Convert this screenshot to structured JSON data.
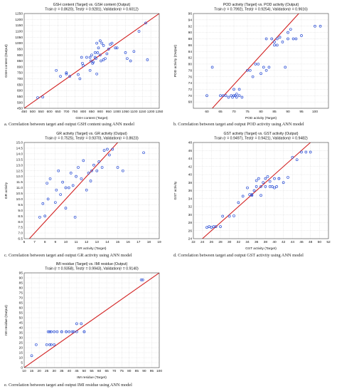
{
  "colors": {
    "line": "#d22020",
    "marker": "#2b4fd6",
    "grid": "#cfcfcf",
    "frame": "#444444"
  },
  "chart_data": [
    {
      "id": "a",
      "type": "scatter",
      "title": "GSH content (Target) vs. GSH content (Output)",
      "subtitle": "Train (r = 0.8620), Test(r = 0.9281), Validation(r = 0.6012)",
      "xlabel": "GSH content (Target)",
      "ylabel": "GSH content (Output)",
      "caption": "a. Correlation between target and output GSH content using ANN model",
      "xlim": [
        450,
        1250
      ],
      "ylim": [
        450,
        1250
      ],
      "xticks": [
        450,
        500,
        550,
        600,
        650,
        700,
        750,
        800,
        850,
        900,
        950,
        1000,
        1050,
        1100,
        1150,
        1200,
        1250
      ],
      "yticks": [
        450,
        500,
        550,
        600,
        650,
        700,
        750,
        800,
        850,
        900,
        950,
        1000,
        1050,
        1100,
        1150,
        1200,
        1250
      ],
      "xtick_labels": [
        "450",
        "500",
        "550",
        "600",
        "650",
        "700",
        "750",
        "800",
        "850",
        "900",
        "950",
        "1000",
        "1050",
        "1100",
        "1150",
        "1200",
        "1250"
      ],
      "ytick_labels": [
        "450",
        "500",
        "550",
        "600",
        "650",
        "700",
        "750",
        "800",
        "850",
        "900",
        "950",
        "1000",
        "1050",
        "1100",
        "1150",
        "1200",
        "1250"
      ],
      "grid": true,
      "fit_line": [
        [
          450,
          450
        ],
        [
          1250,
          1250
        ]
      ],
      "x": [
        530,
        560,
        640,
        665,
        700,
        700,
        720,
        770,
        780,
        790,
        795,
        800,
        820,
        840,
        840,
        845,
        850,
        855,
        860,
        870,
        870,
        875,
        880,
        880,
        885,
        890,
        900,
        900,
        905,
        910,
        920,
        920,
        930,
        940,
        950,
        960,
        970,
        990,
        1000,
        1050,
        1060,
        1080,
        1100,
        1130,
        1170,
        1180
      ],
      "y": [
        540,
        545,
        770,
        720,
        750,
        740,
        720,
        735,
        700,
        880,
        830,
        810,
        880,
        880,
        770,
        850,
        900,
        830,
        840,
        880,
        920,
        870,
        740,
        1000,
        920,
        960,
        900,
        1020,
        850,
        1000,
        860,
        980,
        870,
        910,
        950,
        990,
        1000,
        960,
        960,
        920,
        870,
        850,
        930,
        1100,
        1170,
        860
      ]
    },
    {
      "id": "b",
      "type": "scatter",
      "title": "POD activity (Target) vs. POD activity (Output)",
      "subtitle": "Train (r = 0.7992), Test(r = 0.9254), Validation(r = 0.9616)",
      "xlabel": "POD activity (Target)",
      "ylabel": "POD activity (Output)",
      "caption": "b. Correlation between target and output POD activity using ANN model",
      "xlim": [
        55,
        105
      ],
      "ylim": [
        66,
        96
      ],
      "xticks": [
        60,
        65,
        70,
        75,
        80,
        85,
        90,
        95,
        100
      ],
      "yticks": [
        66,
        68,
        70,
        72,
        74,
        76,
        78,
        80,
        82,
        84,
        86,
        88,
        90,
        92,
        94,
        96
      ],
      "xtick_labels": [
        "60",
        "65",
        "70",
        "75",
        "80",
        "85",
        "90",
        "95",
        "100"
      ],
      "ytick_labels": [
        "",
        "68",
        "70",
        "72",
        "74",
        "76",
        "78",
        "80",
        "82",
        "84",
        "86",
        "88",
        "90",
        "92",
        "94",
        "96"
      ],
      "grid": true,
      "fit_line": [
        [
          62,
          66
        ],
        [
          94,
          96
        ]
      ],
      "x": [
        60,
        62,
        65,
        66,
        67,
        68,
        69,
        69.5,
        70,
        70,
        70.5,
        71,
        71,
        72,
        72,
        73,
        75,
        76,
        77,
        78,
        79,
        80,
        81,
        82,
        82,
        83,
        84,
        85,
        85,
        86,
        86,
        87,
        88,
        89,
        90,
        90,
        91,
        92,
        93,
        95,
        100,
        102
      ],
      "y": [
        70,
        79,
        70,
        70,
        70,
        69.5,
        70,
        69.5,
        70,
        72,
        70,
        69.5,
        70.5,
        70,
        72,
        69.5,
        78,
        78,
        76,
        80,
        80,
        77,
        79,
        78,
        88,
        79,
        88,
        86,
        87,
        86,
        88,
        88.5,
        87,
        79,
        88,
        90,
        91,
        88,
        88,
        89,
        92,
        92
      ]
    },
    {
      "id": "c",
      "type": "scatter",
      "title": "GR activity (Target) vs. GR activity (Output)",
      "subtitle": "Train (r = 0.7525), Test(r = 0.9370), Validation(r = 0.8623)",
      "xlabel": "GR activity (Target)",
      "ylabel": "GR activity",
      "caption": "c. Correlation between target and output GR activity using ANN model",
      "xlim": [
        6,
        19
      ],
      "ylim": [
        6.5,
        15
      ],
      "xticks": [
        6,
        7,
        8,
        9,
        10,
        11,
        12,
        13,
        14,
        15,
        16,
        17,
        18,
        19
      ],
      "yticks": [
        6.5,
        7.0,
        7.5,
        8.0,
        8.5,
        9.0,
        9.5,
        10.0,
        10.5,
        11.0,
        11.5,
        12.0,
        12.5,
        13.0,
        13.5,
        14.0,
        14.5,
        15.0
      ],
      "xtick_labels": [
        "6",
        "7",
        "8",
        "9",
        "10",
        "11",
        "12",
        "13",
        "14",
        "15",
        "16",
        "17",
        "18",
        "19"
      ],
      "ytick_labels": [
        "6.5",
        "7.0",
        "7.5",
        "8.0",
        "8.5",
        "9.0",
        "9.5",
        "10.0",
        "10.5",
        "11.0",
        "11.5",
        "12.0",
        "12.5",
        "13.0",
        "13.5",
        "14.0",
        "14.5",
        "15.0"
      ],
      "grid": true,
      "fit_line": [
        [
          6.5,
          6.5
        ],
        [
          15,
          15
        ]
      ],
      "x": [
        7.5,
        7.8,
        8.0,
        8.2,
        8.3,
        8.5,
        9.0,
        9.1,
        9.3,
        9.5,
        9.7,
        10.0,
        10.0,
        10.3,
        10.5,
        10.7,
        10.9,
        11.0,
        11.2,
        11.5,
        11.7,
        12.0,
        12.2,
        12.4,
        12.5,
        12.7,
        13.0,
        13.2,
        13.5,
        13.7,
        14.0,
        14.2,
        14.5,
        15.0,
        15.5,
        17.5
      ],
      "y": [
        8.4,
        9.6,
        8.5,
        11.4,
        10.0,
        11.8,
        9.7,
        10.8,
        12.5,
        10.4,
        11.5,
        11.0,
        9.2,
        11.0,
        12.3,
        11.2,
        8.4,
        12.0,
        12.8,
        11.8,
        13.4,
        10.8,
        12.3,
        11.6,
        12.5,
        13.0,
        12.5,
        13.3,
        12.8,
        14.3,
        14.4,
        13.9,
        14.4,
        12.8,
        12.5,
        14.1
      ]
    },
    {
      "id": "d",
      "type": "scatter",
      "title": "GST activity (Target) vs. GST activity (Output)",
      "subtitle": "Train (r = 0.9497), Test(r = 0.9421), Validation(r = 0.9482)",
      "xlabel": "GST activity (Target)",
      "ylabel": "GST activity",
      "caption": "d. Correlation between target and output GST activity using ANN model",
      "xlim": [
        22,
        52
      ],
      "ylim": [
        24,
        48
      ],
      "xticks": [
        22,
        24,
        26,
        28,
        30,
        32,
        34,
        36,
        38,
        40,
        42,
        44,
        46,
        48,
        50,
        52
      ],
      "yticks": [
        24,
        26,
        28,
        30,
        32,
        34,
        36,
        38,
        40,
        42,
        44,
        46,
        48
      ],
      "xtick_labels": [
        "22",
        "24",
        "26",
        "28",
        "30",
        "32",
        "34",
        "36",
        "38",
        "40",
        "42",
        "44",
        "46",
        "48",
        "50",
        "52"
      ],
      "ytick_labels": [
        "24",
        "26",
        "28",
        "30",
        "32",
        "34",
        "36",
        "38",
        "40",
        "42",
        "44",
        "46",
        "48"
      ],
      "grid": true,
      "fit_line": [
        [
          24,
          24
        ],
        [
          48,
          48
        ]
      ],
      "x": [
        25,
        25.5,
        26,
        26.5,
        27,
        28,
        28.5,
        30,
        31,
        32,
        33,
        34,
        34.5,
        35,
        35,
        35.5,
        36,
        36,
        36.5,
        37,
        37,
        37.5,
        38,
        38,
        38.5,
        39,
        39,
        39.5,
        40,
        40,
        40.5,
        41,
        41,
        42,
        43,
        44,
        45,
        46,
        47,
        48
      ],
      "y": [
        26.8,
        27,
        26.8,
        27,
        27,
        27,
        29.6,
        29.6,
        29.7,
        33,
        34.6,
        36.7,
        35,
        35,
        34.8,
        36,
        37,
        38.5,
        39,
        34.8,
        37,
        38,
        37,
        39,
        39.5,
        37,
        38.3,
        37,
        39,
        36.7,
        37,
        39,
        39,
        38,
        39.3,
        44.3,
        43.7,
        45.6,
        45.6,
        45.6
      ]
    },
    {
      "id": "e",
      "type": "scatter",
      "title": "IMI residue (Target) vs. IMI residue (Output)",
      "subtitle": "Train (r = 0.9358), Test(r = 0.9943), Validation(r = 0.9140)",
      "xlabel": "IMI residue (Target)",
      "ylabel": "IMI residue (Output)",
      "caption": "e. Correlation between target and output IMI residue using ANN model",
      "xlim": [
        10,
        100
      ],
      "ylim": [
        0,
        95
      ],
      "xticks": [
        10,
        15,
        20,
        25,
        30,
        35,
        40,
        45,
        50,
        55,
        60,
        65,
        70,
        75,
        80,
        85,
        90,
        95,
        100
      ],
      "yticks": [
        0,
        5,
        10,
        15,
        20,
        25,
        30,
        35,
        40,
        45,
        50,
        55,
        60,
        65,
        70,
        75,
        80,
        85,
        90,
        95
      ],
      "xtick_labels": [
        "10",
        "15",
        "20",
        "25",
        "30",
        "35",
        "40",
        "45",
        "50",
        "55",
        "60",
        "65",
        "70",
        "75",
        "80",
        "85",
        "90",
        "95",
        "100"
      ],
      "ytick_labels": [
        "0",
        "5",
        "10",
        "15",
        "20",
        "25",
        "30",
        "35",
        "40",
        "45",
        "50",
        "55",
        "60",
        "65",
        "70",
        "75",
        "80",
        "85",
        "90",
        "95"
      ],
      "grid": true,
      "fit_line": [
        [
          10,
          0
        ],
        [
          100,
          95
        ]
      ],
      "x": [
        15,
        18,
        25,
        26,
        27,
        27,
        28,
        28,
        30,
        30,
        32,
        35,
        35,
        38,
        38,
        40,
        42,
        43,
        45,
        45,
        48,
        50,
        50,
        88,
        89
      ],
      "y": [
        12,
        23,
        23,
        36,
        23,
        36,
        23,
        36,
        23,
        36,
        36,
        36,
        36,
        36,
        36,
        36,
        36,
        36,
        36,
        44,
        44,
        36,
        36,
        88,
        88
      ]
    }
  ]
}
